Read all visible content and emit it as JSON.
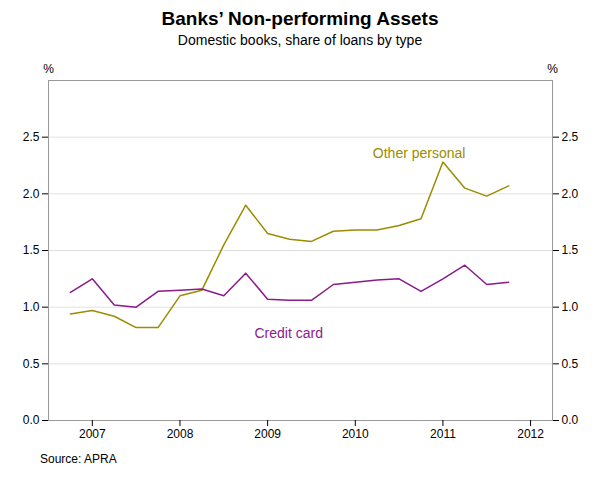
{
  "chart_data": {
    "type": "line",
    "title": "Banks’ Non-performing Assets",
    "subtitle": "Domestic books, share of loans by type",
    "source": "Source: APRA",
    "ylabel": "%",
    "y2label": "%",
    "x": [
      2006.75,
      2007.0,
      2007.25,
      2007.5,
      2007.75,
      2008.0,
      2008.25,
      2008.5,
      2008.75,
      2009.0,
      2009.25,
      2009.5,
      2009.75,
      2010.0,
      2010.25,
      2010.5,
      2010.75,
      2011.0,
      2011.25,
      2011.5,
      2011.75
    ],
    "series": [
      {
        "name": "Other personal",
        "color": "#9B8C00",
        "values": [
          0.94,
          0.97,
          0.92,
          0.82,
          0.82,
          1.1,
          1.15,
          1.55,
          1.9,
          1.65,
          1.6,
          1.58,
          1.67,
          1.68,
          1.68,
          1.72,
          1.78,
          2.28,
          2.05,
          1.98,
          2.07
        ]
      },
      {
        "name": "Credit card",
        "color": "#8B1A8B",
        "values": [
          1.13,
          1.25,
          1.02,
          1.0,
          1.14,
          1.15,
          1.16,
          1.1,
          1.3,
          1.07,
          1.06,
          1.06,
          1.2,
          1.22,
          1.24,
          1.25,
          1.14,
          1.25,
          1.37,
          1.2,
          1.22
        ]
      }
    ],
    "xlim": [
      2006.5,
      2012.25
    ],
    "xticks": [
      2007,
      2008,
      2009,
      2010,
      2011,
      2012
    ],
    "ylim": [
      0,
      3
    ],
    "yticks": [
      {
        "value": 0,
        "label": "0.0"
      },
      0.5,
      {
        "value": 1,
        "label": "1.0"
      },
      1.5,
      {
        "value": 2,
        "label": "2.0"
      },
      2.5
    ],
    "y2lim": [
      0,
      3
    ],
    "y2ticks": [
      {
        "value": 0,
        "label": "0.0"
      },
      0.5,
      {
        "value": 1,
        "label": "1.0"
      },
      1.5,
      {
        "value": 2,
        "label": "2.0"
      },
      2.5
    ],
    "grid": true,
    "annotations": [
      {
        "text": "Other personal",
        "x": 2010.2,
        "y": 2.32,
        "color": "#9B8C00"
      },
      {
        "text": "Credit card",
        "x": 2008.85,
        "y": 0.82,
        "color": "#8B1A8B"
      }
    ]
  }
}
